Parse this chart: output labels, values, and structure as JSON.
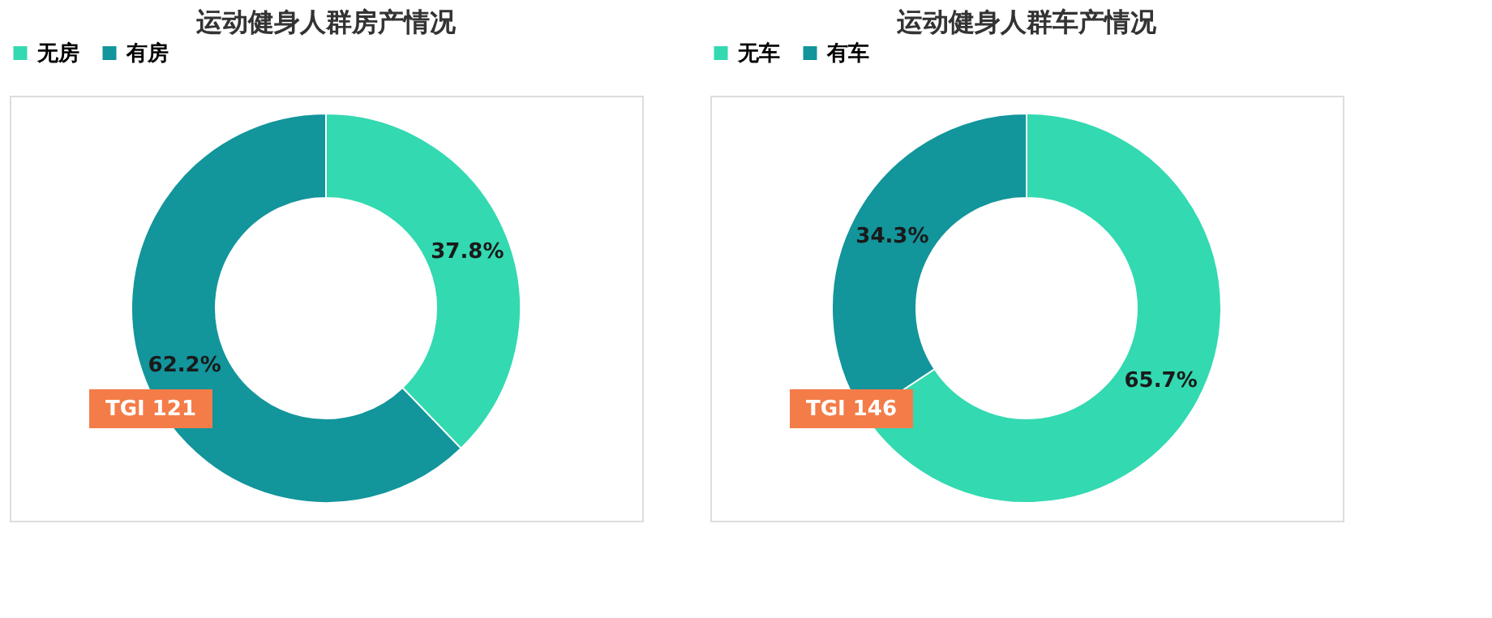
{
  "chart_data": [
    {
      "type": "donut",
      "title": "运动健身人群房产情况",
      "categories": [
        "无房",
        "有房"
      ],
      "values": [
        37.8,
        62.2
      ],
      "colors": [
        "#33d9b0",
        "#12959b"
      ],
      "value_labels": [
        "37.8%",
        "62.2%"
      ],
      "legend": "top",
      "annotations": [
        "TGI 121"
      ]
    },
    {
      "type": "donut",
      "title": "运动健身人群车产情况",
      "categories": [
        "无车",
        "有车"
      ],
      "values": [
        65.7,
        34.3
      ],
      "colors": [
        "#33d9b0",
        "#12959b"
      ],
      "value_labels": [
        "65.7%",
        "34.3%"
      ],
      "legend": "top",
      "annotations": [
        "TGI 146"
      ]
    }
  ]
}
